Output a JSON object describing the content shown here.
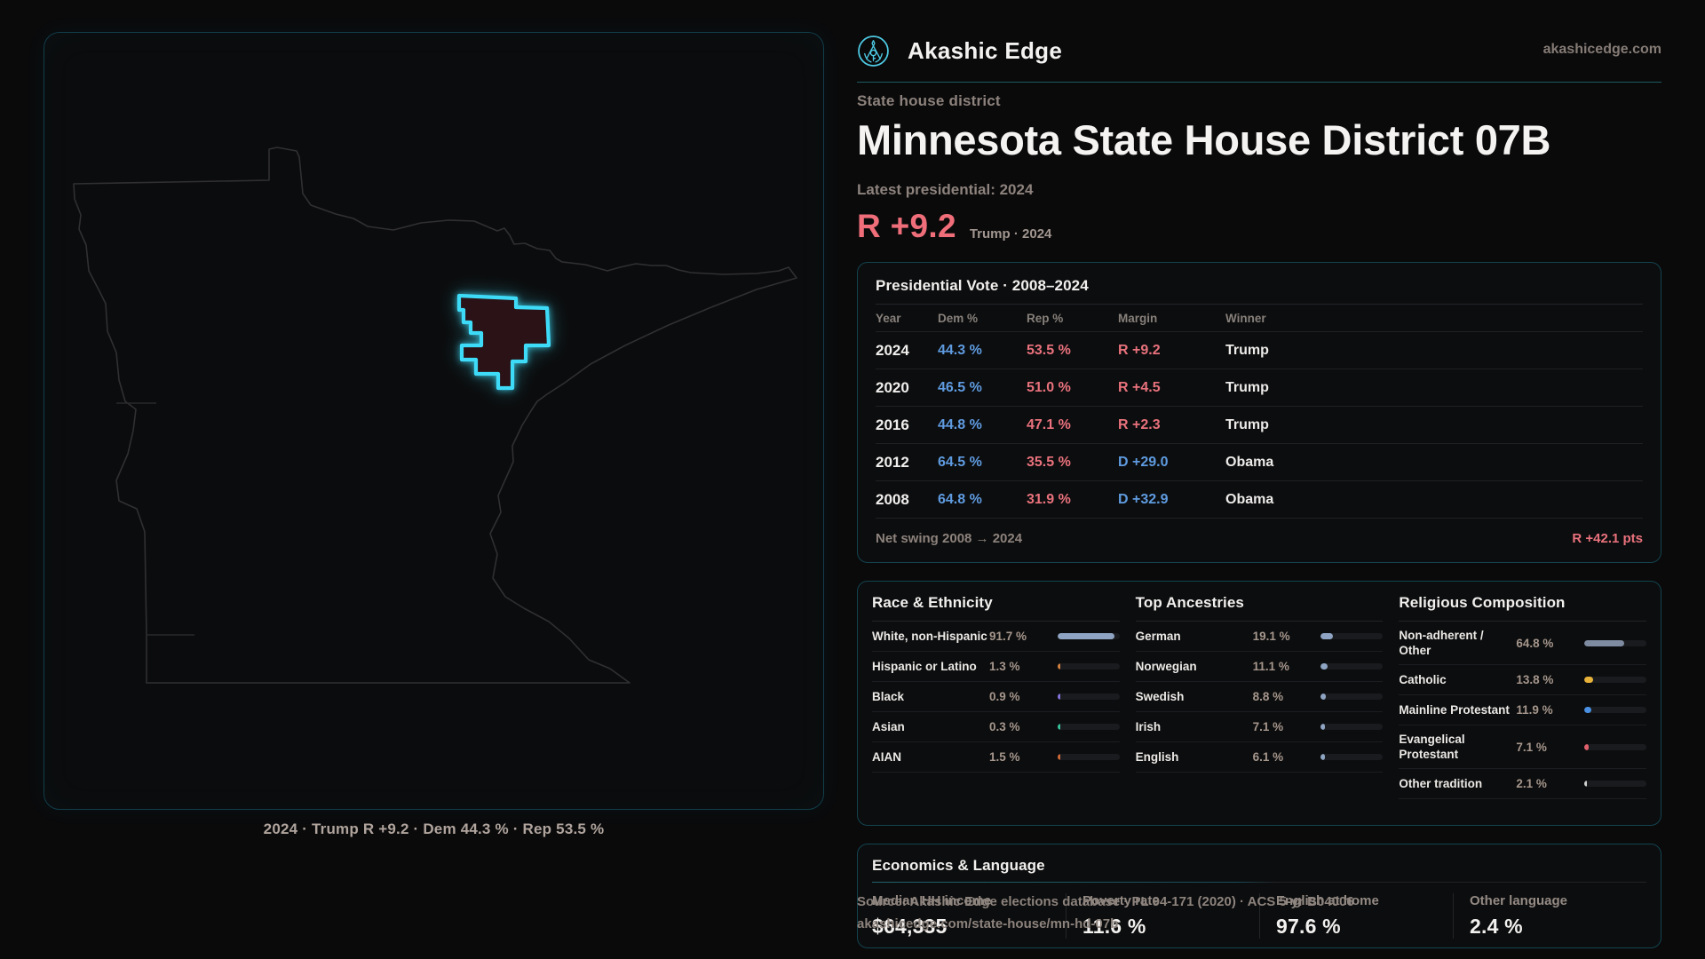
{
  "page": {
    "brand": "Akashic Edge",
    "domain_link": "akashicedge.com"
  },
  "map": {
    "caption": "2024 · Trump R +9.2 · Dem 44.3 % · Rep 53.5 %"
  },
  "hero": {
    "eyebrow": "State house district",
    "title": "Minnesota State House District 07B",
    "latest_label": "Latest presidential: 2024",
    "margin_value": "R +9.2",
    "margin_context": "Trump · 2024"
  },
  "vote_table": {
    "title": "Presidential Vote · 2008–2024",
    "columns": [
      "Year",
      "Dem %",
      "Rep %",
      "Margin",
      "Winner"
    ],
    "rows": [
      {
        "year": "2024",
        "dem": "44.3 %",
        "rep": "53.5 %",
        "margin": "R +9.2",
        "margin_class": "rep-margin",
        "winner": "Trump"
      },
      {
        "year": "2020",
        "dem": "46.5 %",
        "rep": "51.0 %",
        "margin": "R +4.5",
        "margin_class": "rep-margin",
        "winner": "Trump"
      },
      {
        "year": "2016",
        "dem": "44.8 %",
        "rep": "47.1 %",
        "margin": "R +2.3",
        "margin_class": "rep-margin",
        "winner": "Trump"
      },
      {
        "year": "2012",
        "dem": "64.5 %",
        "rep": "35.5 %",
        "margin": "D +29.0",
        "margin_class": "dem-margin",
        "winner": "Obama"
      },
      {
        "year": "2008",
        "dem": "64.8 %",
        "rep": "31.9 %",
        "margin": "D +32.9",
        "margin_class": "dem-margin",
        "winner": "Obama"
      }
    ],
    "net_swing_label": "Net swing 2008 → 2024",
    "net_swing_value": "R +42.1 pts"
  },
  "demographics": {
    "race": {
      "title": "Race & Ethnicity",
      "rows": [
        {
          "label": "White, non-Hispanic",
          "value": "91.7 %",
          "pct": 91.7,
          "color": "#8ea4c2"
        },
        {
          "label": "Hispanic or Latino",
          "value": "1.3 %",
          "pct": 1.3,
          "color": "#d5813f"
        },
        {
          "label": "Black",
          "value": "0.9 %",
          "pct": 0.9,
          "color": "#8673dd"
        },
        {
          "label": "Asian",
          "value": "0.3 %",
          "pct": 0.3,
          "color": "#38c49b"
        },
        {
          "label": "AIAN",
          "value": "1.5 %",
          "pct": 1.5,
          "color": "#d06a38"
        }
      ]
    },
    "ancestries": {
      "title": "Top Ancestries",
      "rows": [
        {
          "label": "German",
          "value": "19.1 %",
          "pct": 19.1,
          "color": "#8ea4c2"
        },
        {
          "label": "Norwegian",
          "value": "11.1 %",
          "pct": 11.1,
          "color": "#8ea4c2"
        },
        {
          "label": "Swedish",
          "value": "8.8 %",
          "pct": 8.8,
          "color": "#8ea4c2"
        },
        {
          "label": "Irish",
          "value": "7.1 %",
          "pct": 7.1,
          "color": "#8ea4c2"
        },
        {
          "label": "English",
          "value": "6.1 %",
          "pct": 6.1,
          "color": "#8ea4c2"
        }
      ]
    },
    "religion": {
      "title": "Religious Composition",
      "rows": [
        {
          "label": "Non-adherent / Other",
          "value": "64.8 %",
          "pct": 64.8,
          "color": "#7e8ba1"
        },
        {
          "label": "Catholic",
          "value": "13.8 %",
          "pct": 13.8,
          "color": "#e7b239"
        },
        {
          "label": "Mainline Protestant",
          "value": "11.9 %",
          "pct": 11.9,
          "color": "#4a90e2"
        },
        {
          "label": "Evangelical Protestant",
          "value": "7.1 %",
          "pct": 7.1,
          "color": "#e0606c"
        },
        {
          "label": "Other tradition",
          "value": "2.1 %",
          "pct": 2.1,
          "color": "#cfcfcf"
        }
      ]
    }
  },
  "economics": {
    "title": "Economics & Language",
    "stats": [
      {
        "label": "Median HH income",
        "value": "$64,335"
      },
      {
        "label": "Poverty rate",
        "value": "11.6 %"
      },
      {
        "label": "English at home",
        "value": "97.6 %"
      },
      {
        "label": "Other language",
        "value": "2.4 %"
      }
    ]
  },
  "source": {
    "line1": "Source: Akashic Edge elections database · PL 94-171 (2020) · ACS 5-yr B04006",
    "line2": "akashicedge.com/state-house/mn-hd-07b"
  }
}
